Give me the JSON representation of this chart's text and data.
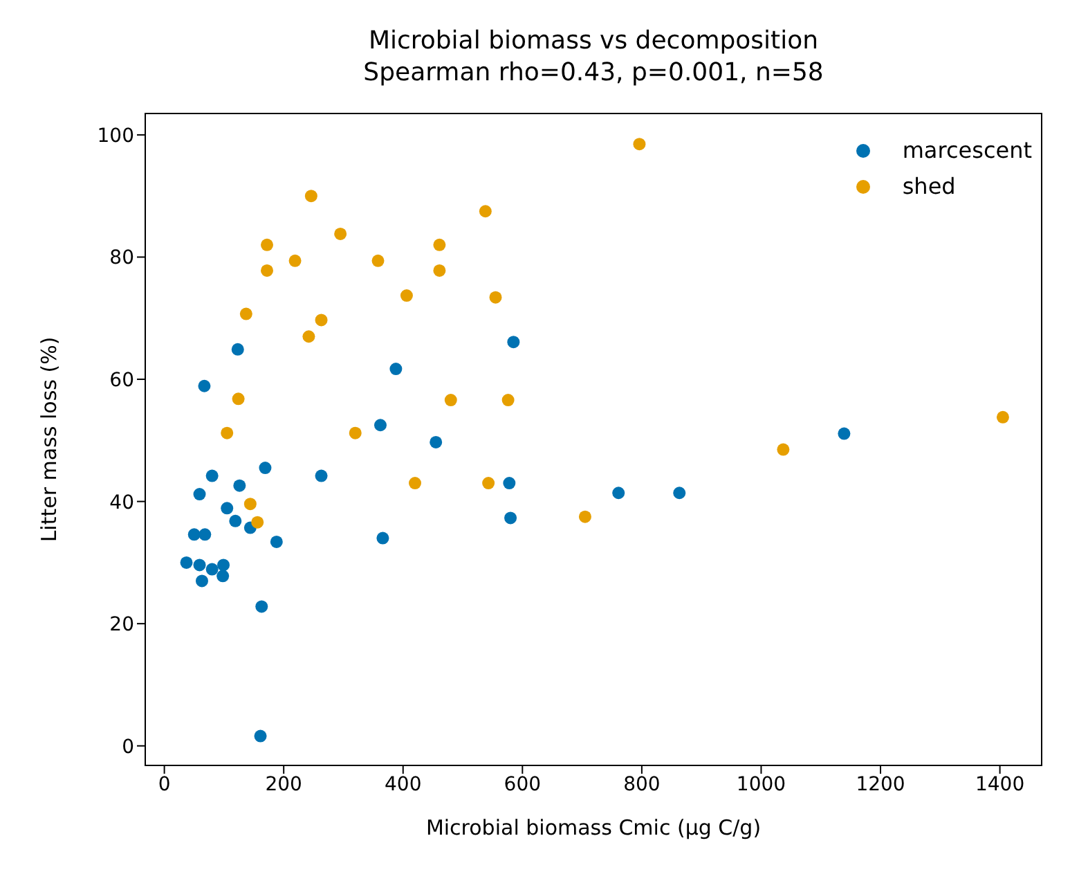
{
  "chart_data": {
    "type": "scatter",
    "title": "Microbial biomass vs decomposition",
    "subtitle": "Spearman rho=0.43, p=0.001, n=58",
    "xlabel": "Microbial biomass Cmic (µg C/g)",
    "ylabel": "Litter mass loss (%)",
    "xlim": [
      -32,
      1470
    ],
    "ylim": [
      -3.2,
      103.5
    ],
    "xticks": [
      0,
      200,
      400,
      600,
      800,
      1000,
      1200,
      1400
    ],
    "yticks": [
      0,
      20,
      40,
      60,
      80,
      100
    ],
    "grid": false,
    "legend": "top right",
    "marker": "circle",
    "series": [
      {
        "name": "marcescent",
        "color": "#0072b2",
        "x": [
          123,
          388,
          67,
          362,
          169,
          80,
          263,
          59,
          126,
          105,
          119,
          144,
          188,
          366,
          50,
          68,
          37,
          59,
          80,
          99,
          98,
          63,
          163,
          161,
          585,
          455,
          578,
          580,
          761,
          863,
          1139
        ],
        "values": [
          64.9,
          61.7,
          58.9,
          52.5,
          45.5,
          44.2,
          44.2,
          41.2,
          42.6,
          38.9,
          36.8,
          35.7,
          33.4,
          34.0,
          34.6,
          34.6,
          30.0,
          29.6,
          28.9,
          29.6,
          27.8,
          27.0,
          22.8,
          1.6,
          66.1,
          49.7,
          43.0,
          37.3,
          41.4,
          41.4,
          51.1
        ]
      },
      {
        "name": "shed",
        "color": "#e69f00",
        "x": [
          246,
          295,
          172,
          219,
          358,
          461,
          172,
          461,
          538,
          406,
          555,
          137,
          263,
          242,
          124,
          480,
          576,
          105,
          320,
          144,
          156,
          796,
          420,
          543,
          705,
          1037,
          1405
        ],
        "values": [
          90.0,
          83.8,
          82.0,
          79.4,
          79.4,
          82.0,
          77.8,
          77.8,
          87.5,
          73.7,
          73.4,
          70.7,
          69.7,
          67.0,
          56.8,
          56.6,
          56.6,
          51.2,
          51.2,
          39.6,
          36.6,
          98.5,
          43.0,
          43.0,
          37.5,
          48.5,
          53.8
        ]
      }
    ]
  }
}
